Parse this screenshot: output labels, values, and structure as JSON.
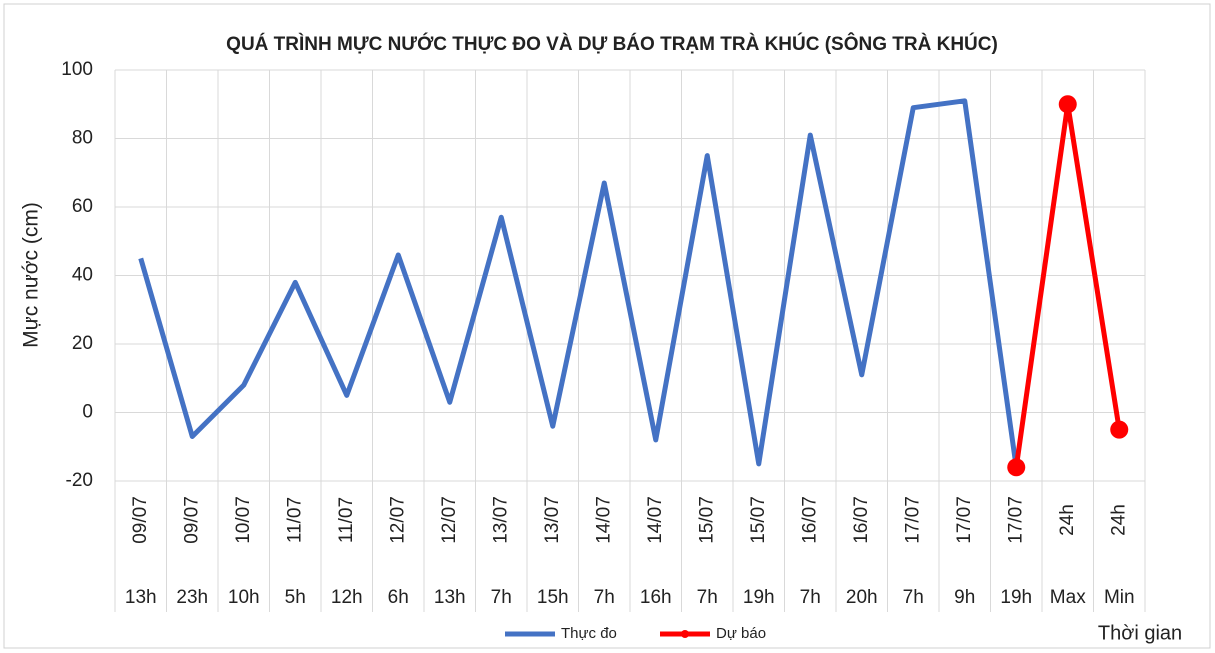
{
  "chart_data": {
    "type": "line",
    "title": "QUÁ TRÌNH MỰC NƯỚC THỰC ĐO VÀ DỰ BÁO TRẠM TRÀ KHÚC (SÔNG TRÀ KHÚC)",
    "ylabel": "Mực nước (cm)",
    "xlabel": "Thời gian",
    "categories": [
      [
        "09/07",
        "13h"
      ],
      [
        "09/07",
        "23h"
      ],
      [
        "10/07",
        "10h"
      ],
      [
        "11/07",
        "5h"
      ],
      [
        "11/07",
        "12h"
      ],
      [
        "12/07",
        "6h"
      ],
      [
        "12/07",
        "13h"
      ],
      [
        "13/07",
        "7h"
      ],
      [
        "13/07",
        "15h"
      ],
      [
        "14/07",
        "7h"
      ],
      [
        "14/07",
        "16h"
      ],
      [
        "15/07",
        "7h"
      ],
      [
        "15/07",
        "19h"
      ],
      [
        "16/07",
        "7h"
      ],
      [
        "16/07",
        "20h"
      ],
      [
        "17/07",
        "7h"
      ],
      [
        "17/07",
        "9h"
      ],
      [
        "17/07",
        "19h"
      ],
      [
        "24h",
        "Max"
      ],
      [
        "24h",
        "Min"
      ]
    ],
    "series": [
      {
        "name": "Thực đo",
        "color": "#4472c4",
        "values": [
          45,
          -7,
          8,
          38,
          5,
          46,
          3,
          57,
          -4,
          67,
          -8,
          75,
          -15,
          81,
          11,
          89,
          91,
          -16,
          null,
          null
        ]
      },
      {
        "name": "Dự báo",
        "color": "#ff0000",
        "values": [
          null,
          null,
          null,
          null,
          null,
          null,
          null,
          null,
          null,
          null,
          null,
          null,
          null,
          null,
          null,
          null,
          null,
          -16,
          90,
          -5
        ]
      }
    ],
    "ylim": [
      -20,
      100
    ],
    "yticks": [
      -20,
      0,
      20,
      40,
      60,
      80,
      100
    ],
    "grid": true,
    "legend": "bottom"
  }
}
